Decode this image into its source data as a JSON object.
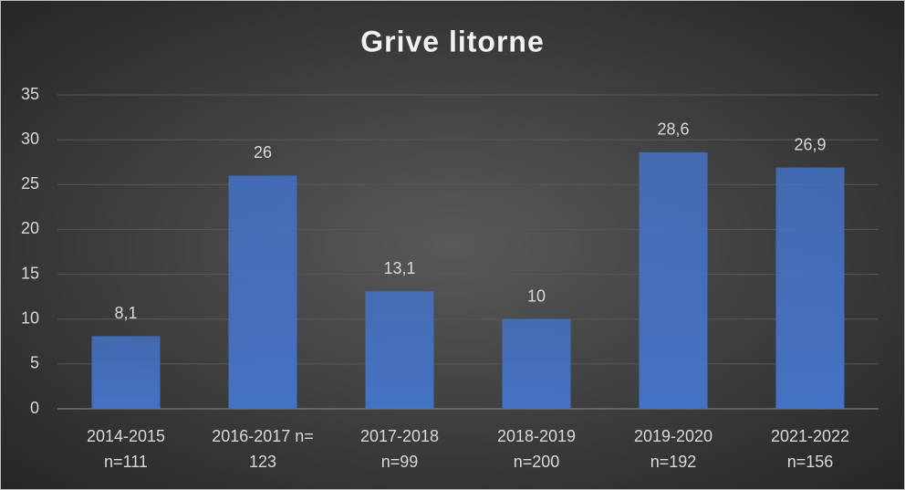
{
  "chart_data": {
    "type": "bar",
    "title": "Grive litorne",
    "categories": [
      "2014-2015\nn=111",
      "2016-2017 n=\n123",
      "2017-2018\nn=99",
      "2018-2019\nn=200",
      "2019-2020\nn=192",
      "2021-2022\nn=156"
    ],
    "values": [
      8.1,
      26,
      13.1,
      10,
      28.6,
      26.9
    ],
    "value_labels": [
      "8,1",
      "26",
      "13,1",
      "10",
      "28,6",
      "26,9"
    ],
    "color": "#4472c4",
    "ylim": [
      0,
      35
    ],
    "yticks": [
      0,
      5,
      10,
      15,
      20,
      25,
      30,
      35
    ],
    "grid": true
  }
}
